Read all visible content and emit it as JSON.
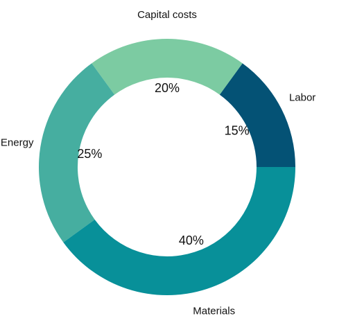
{
  "chart_data": {
    "type": "pie",
    "variant": "donut",
    "title": "",
    "categories": [
      "Labor",
      "Capital costs",
      "Energy",
      "Materials"
    ],
    "values": [
      15,
      20,
      25,
      40
    ],
    "value_labels": [
      "15%",
      "20%",
      "25%",
      "40%"
    ],
    "colors": [
      "#045275",
      "#7ccba2",
      "#46aea0",
      "#089099"
    ],
    "legend": "none"
  }
}
